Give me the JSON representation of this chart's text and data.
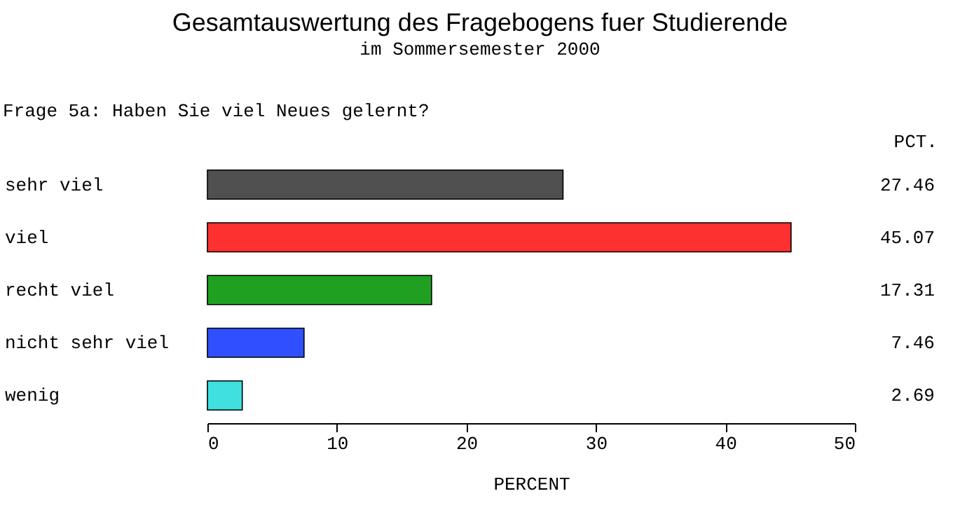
{
  "chart_data": {
    "type": "bar",
    "orientation": "horizontal",
    "title": "Gesamtauswertung des Fragebogens fuer Studierende",
    "subtitle": "im Sommersemester 2000",
    "annotations": [
      "Frage 5a: Haben Sie viel Neues gelernt?",
      "PCT."
    ],
    "categories": [
      "sehr viel",
      "viel",
      "recht viel",
      "nicht sehr viel",
      "wenig"
    ],
    "values": [
      27.46,
      45.07,
      17.31,
      7.46,
      2.69
    ],
    "colors": [
      "#505050",
      "#ff3030",
      "#20a020",
      "#3050ff",
      "#40e0e0"
    ],
    "xlim": [
      0,
      50
    ],
    "xticks": [
      0,
      10,
      20,
      30,
      40,
      50
    ],
    "xlabel": "PERCENT",
    "data_labels": true,
    "grid": false
  }
}
